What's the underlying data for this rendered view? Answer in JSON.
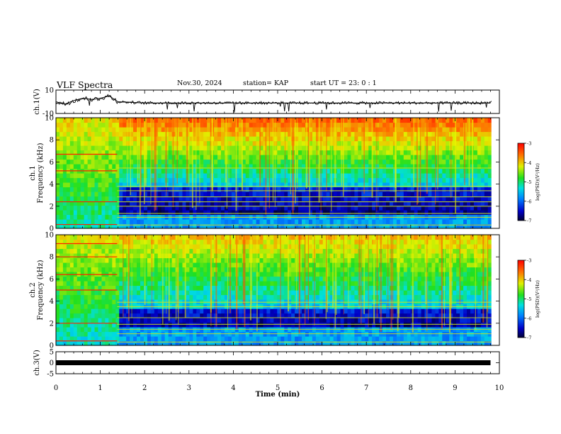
{
  "header": {
    "title": "VLF Spectra",
    "date": "Nov.30, 2024",
    "station": "station= KAP",
    "start": "start  UT  =   23: 0  : 1"
  },
  "chart_data": [
    {
      "type": "line",
      "panel": "ch1_waveform",
      "ylabel": "ch.1(V)",
      "ylim": [
        -10,
        10
      ],
      "yticks": [
        "10",
        "-10"
      ],
      "x": [
        0,
        0.2,
        0.4,
        0.6,
        0.8,
        1.0,
        1.2,
        1.4,
        2,
        3,
        4,
        5,
        6,
        7,
        8,
        9,
        9.8
      ],
      "values": [
        0,
        -2,
        1,
        3,
        2,
        3,
        5,
        0,
        -1,
        -1,
        -1,
        -1,
        -1,
        -1,
        -1,
        -1,
        -1
      ],
      "color": "#000000"
    },
    {
      "type": "heatmap",
      "panel": "ch1_spectrogram",
      "ylabel": "ch.1 Frequency  (kHz)",
      "ylim": [
        0,
        10
      ],
      "yticks": [
        "0",
        "2",
        "4",
        "6",
        "8",
        "10"
      ],
      "xlim": [
        0,
        10
      ],
      "colorbar": {
        "label": "log(PSD)(V²/Hz)",
        "range": [
          -7,
          -3
        ],
        "ticks": [
          "-3",
          "-4",
          "-5",
          "-6",
          "-7"
        ]
      },
      "lines_kHz": [
        0.3,
        1.0,
        1.35,
        2.0,
        2.4,
        2.85,
        3.4,
        3.8,
        5.45
      ],
      "segment_break_min": 1.38
    },
    {
      "type": "heatmap",
      "panel": "ch2_spectrogram",
      "ylabel": "ch.2 Frequency  (kHz)",
      "ylim": [
        0,
        10
      ],
      "yticks": [
        "0",
        "2",
        "4",
        "6",
        "8",
        "10"
      ],
      "xlim": [
        0,
        10
      ],
      "colorbar": {
        "label": "log(PSD)(V²/Hz)",
        "range": [
          -7,
          -3
        ],
        "ticks": [
          "-3",
          "-4",
          "-5",
          "-6",
          "-7"
        ]
      },
      "lines_kHz": [
        0.3,
        1.05,
        1.45,
        1.9,
        2.5,
        3.5,
        3.9
      ],
      "segment_break_min": 1.38
    },
    {
      "type": "line",
      "panel": "ch3_waveform",
      "ylabel": "ch.3(V)",
      "ylim": [
        -5,
        5
      ],
      "yticks": [
        "5",
        "0",
        "-5"
      ],
      "x": [
        0,
        9.8
      ],
      "values": [
        0,
        0
      ],
      "color": "#000000"
    }
  ],
  "xaxis": {
    "label": "Time  (min)",
    "ticks": [
      "0",
      "1",
      "2",
      "3",
      "4",
      "5",
      "6",
      "7",
      "8",
      "9",
      "10"
    ],
    "range": [
      0,
      10
    ]
  }
}
